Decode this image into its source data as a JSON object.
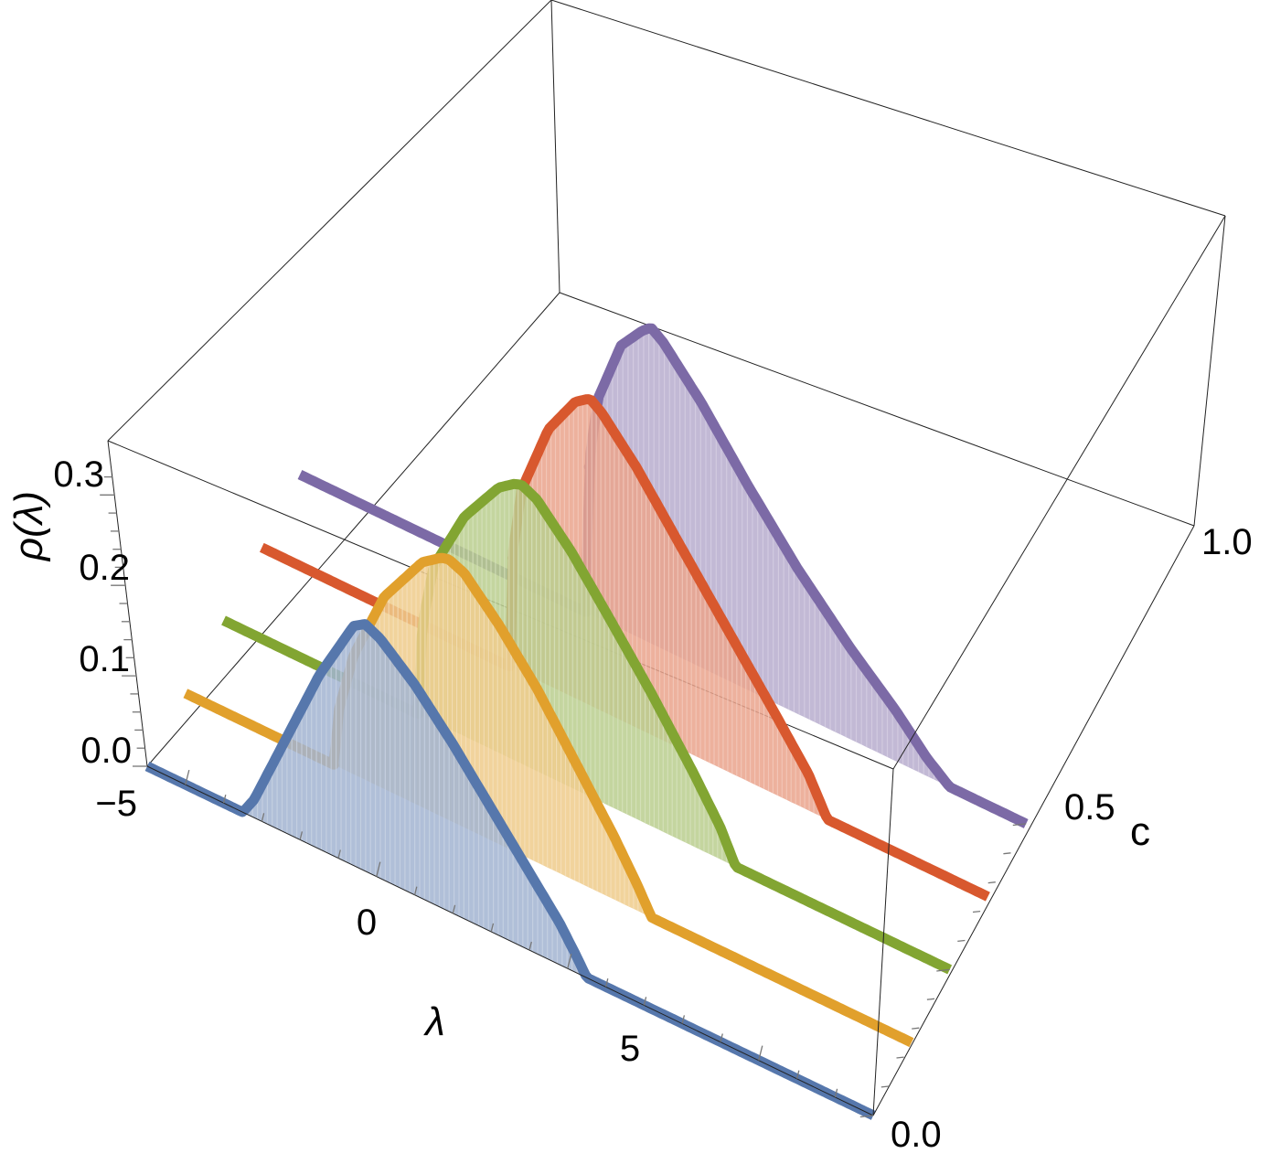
{
  "chart_data": {
    "type": "line",
    "subtype": "3d-waterfall",
    "x_axis": {
      "label": "λ",
      "ticks": [
        "−5",
        "0",
        "5"
      ]
    },
    "y_axis": {
      "label": "c",
      "ticks": [
        "0.0",
        "0.5",
        "1.0"
      ]
    },
    "z_axis": {
      "label": "ρ(λ)",
      "ticks": [
        "0.0",
        "0.1",
        "0.2",
        "0.3"
      ]
    },
    "x_range": [
      -6,
      13
    ],
    "y_range": [
      0,
      1
    ],
    "z_range": [
      0,
      0.32
    ],
    "series": [
      {
        "c": 0.0,
        "color": "#5677ac",
        "edge_start": -3.5,
        "peak": [
          -0.3,
          0.27
        ],
        "edge_end": 5.5,
        "x": [
          -6,
          -3.5,
          -3.2,
          -2.5,
          -1.5,
          -0.6,
          -0.3,
          0.1,
          1.0,
          2.0,
          3.0,
          4.0,
          4.8,
          5.2,
          5.5,
          13
        ],
        "y": [
          0,
          0,
          0.02,
          0.09,
          0.19,
          0.262,
          0.27,
          0.262,
          0.23,
          0.185,
          0.135,
          0.085,
          0.045,
          0.02,
          0,
          0
        ]
      },
      {
        "c": 0.25,
        "color": "#e1a02c",
        "edge_start": -2.1,
        "peak": [
          0.9,
          0.285
        ],
        "edge_end": 6.2,
        "x": [
          -6,
          -2.1,
          -2.0,
          -1.6,
          -0.8,
          0.2,
          0.7,
          0.9,
          1.3,
          2.2,
          3.2,
          4.2,
          5.2,
          5.8,
          6.2,
          13
        ],
        "y": [
          0,
          0,
          0.06,
          0.13,
          0.21,
          0.268,
          0.283,
          0.285,
          0.278,
          0.24,
          0.19,
          0.13,
          0.07,
          0.03,
          0,
          0
        ]
      },
      {
        "c": 0.5,
        "color": "#82a532",
        "edge_start": -0.9,
        "peak": [
          1.8,
          0.305
        ],
        "edge_end": 7.4,
        "x": [
          -6,
          -0.9,
          -0.8,
          -0.5,
          0.3,
          1.2,
          1.6,
          1.8,
          2.2,
          3.1,
          4.1,
          5.2,
          6.3,
          7.0,
          7.4,
          13
        ],
        "y": [
          0,
          0,
          0.1,
          0.17,
          0.24,
          0.29,
          0.302,
          0.305,
          0.297,
          0.258,
          0.205,
          0.145,
          0.08,
          0.035,
          0,
          0
        ]
      },
      {
        "c": 0.75,
        "color": "#d8582e",
        "edge_start": 0.5,
        "peak": [
          2.6,
          0.335
        ],
        "edge_end": 8.8,
        "x": [
          -6,
          0.5,
          0.55,
          0.8,
          1.5,
          2.2,
          2.5,
          2.6,
          2.9,
          3.8,
          4.9,
          6.1,
          7.4,
          8.3,
          8.8,
          13
        ],
        "y": [
          0,
          0,
          0.12,
          0.2,
          0.28,
          0.324,
          0.333,
          0.335,
          0.326,
          0.285,
          0.225,
          0.16,
          0.09,
          0.04,
          0,
          0
        ]
      },
      {
        "c": 1.0,
        "color": "#7c6aa6",
        "edge_start": 1.5,
        "peak": [
          3.2,
          0.345
        ],
        "edge_end": 11.0,
        "x": [
          -6,
          1.5,
          1.55,
          1.8,
          2.4,
          2.95,
          3.15,
          3.2,
          3.5,
          4.5,
          5.7,
          7.0,
          8.4,
          9.6,
          10.4,
          11.0,
          13
        ],
        "y": [
          0,
          0,
          0.16,
          0.24,
          0.31,
          0.337,
          0.344,
          0.345,
          0.336,
          0.29,
          0.225,
          0.16,
          0.1,
          0.055,
          0.02,
          0,
          0
        ]
      }
    ]
  }
}
